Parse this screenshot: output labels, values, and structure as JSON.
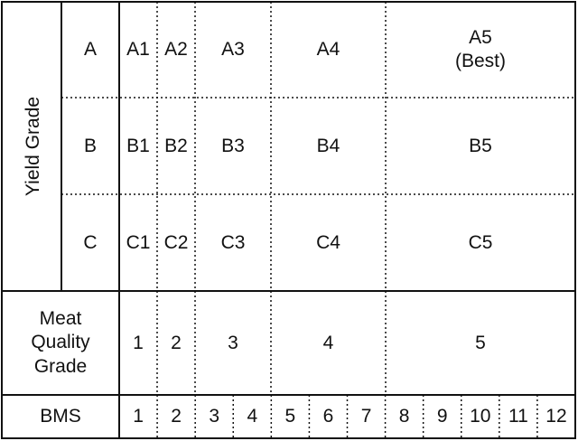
{
  "yield_grade": {
    "label": "Yield Grade",
    "rows": [
      {
        "grade": "A",
        "cells": [
          "A1",
          "A2",
          "A3",
          "A4",
          "A5"
        ],
        "note": "(Best)"
      },
      {
        "grade": "B",
        "cells": [
          "B1",
          "B2",
          "B3",
          "B4",
          "B5"
        ]
      },
      {
        "grade": "C",
        "cells": [
          "C1",
          "C2",
          "C3",
          "C4",
          "C5"
        ]
      }
    ]
  },
  "meat_quality_grade": {
    "label": [
      "Meat",
      "Quality",
      "Grade"
    ],
    "values": [
      "1",
      "2",
      "3",
      "4",
      "5"
    ]
  },
  "bms": {
    "label": "BMS",
    "values": [
      "1",
      "2",
      "3",
      "4",
      "5",
      "6",
      "7",
      "8",
      "9",
      "10",
      "11",
      "12"
    ]
  }
}
